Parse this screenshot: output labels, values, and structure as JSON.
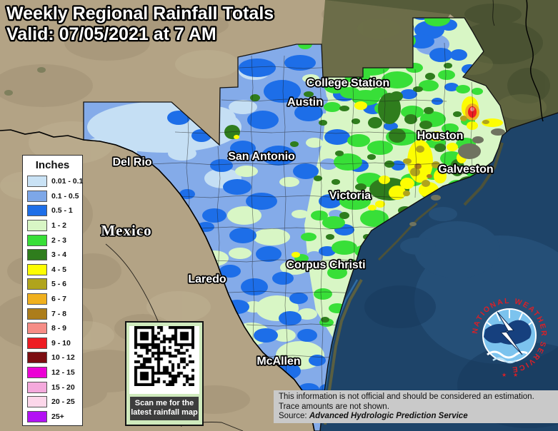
{
  "title": {
    "line1": "Weekly Regional Rainfall Totals",
    "line2": "Valid: 07/05/2021 at 7 AM"
  },
  "legend": {
    "heading": "Inches",
    "items": [
      {
        "label": "0.01 - 0.1",
        "color": "#c9e2f5"
      },
      {
        "label": "0.1 - 0.5",
        "color": "#7da7e8"
      },
      {
        "label": "0.5 - 1",
        "color": "#1d6ee8"
      },
      {
        "label": "1 - 2",
        "color": "#d8f6c5"
      },
      {
        "label": "2 - 3",
        "color": "#38df38"
      },
      {
        "label": "3 - 4",
        "color": "#2f7d1d"
      },
      {
        "label": "4 - 5",
        "color": "#fdfd02"
      },
      {
        "label": "5 - 6",
        "color": "#b0a41c"
      },
      {
        "label": "6 - 7",
        "color": "#f0b01e"
      },
      {
        "label": "7 - 8",
        "color": "#ac7d1b"
      },
      {
        "label": "8 - 9",
        "color": "#f68d86"
      },
      {
        "label": "9 - 10",
        "color": "#ee1c23"
      },
      {
        "label": "10 - 12",
        "color": "#7c0e12"
      },
      {
        "label": "12 - 15",
        "color": "#ec00d5"
      },
      {
        "label": "15 - 20",
        "color": "#f4a9dc"
      },
      {
        "label": "20 - 25",
        "color": "#fcd7ea"
      },
      {
        "label": "25+",
        "color": "#b311f4"
      }
    ]
  },
  "map": {
    "cities": [
      {
        "name": "College Station"
      },
      {
        "name": "Austin"
      },
      {
        "name": "San Antonio"
      },
      {
        "name": "Houston"
      },
      {
        "name": "Galveston"
      },
      {
        "name": "Victoria"
      },
      {
        "name": "Del Rio"
      },
      {
        "name": "Laredo"
      },
      {
        "name": "Corpus Christi"
      },
      {
        "name": "McAllen"
      }
    ],
    "country_label": "Mexico"
  },
  "qr": {
    "caption_line1": "Scan me for the",
    "caption_line2": "latest rainfall map"
  },
  "disclaimer": {
    "line1": "This information is not official and should be considered an estimation.",
    "line2": "Trace amounts are not shown.",
    "source_label": "Source: ",
    "source_name": "Advanced Hydrologic Prediction Service"
  },
  "logo": {
    "text": "NATIONAL WEATHER SERVICE",
    "accent_color": "#d92027"
  }
}
